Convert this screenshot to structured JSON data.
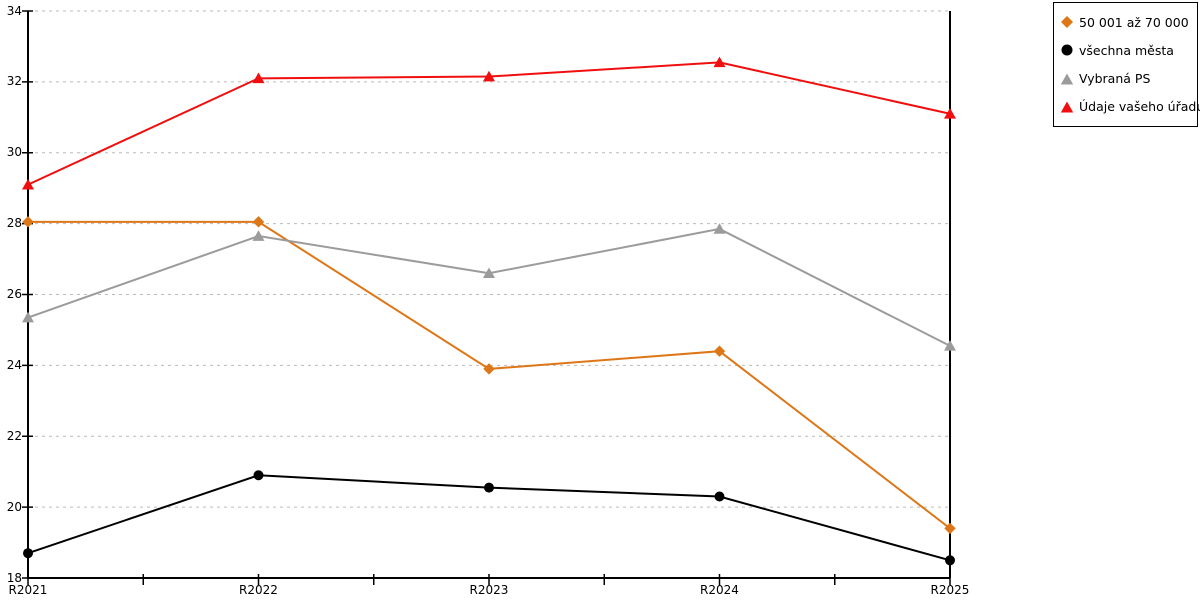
{
  "chart_data": {
    "type": "line",
    "title": "",
    "xlabel": "",
    "ylabel": "",
    "x_labels": [
      "R2021",
      "R2022",
      "R2023",
      "R2024",
      "R2025"
    ],
    "y_ticks": [
      "34",
      "32",
      "30",
      "28",
      "26",
      "24",
      "22",
      "20",
      "18"
    ],
    "ylim": [
      18,
      34
    ],
    "ytick_step": 2,
    "grid": "horizontal-dashed",
    "legend_position": "top-right-outside",
    "series": [
      {
        "name": "50 001 až 70 000",
        "marker": "diamond",
        "color": "#DD7616",
        "values": [
          28.05,
          28.05,
          23.9,
          24.4,
          19.4
        ]
      },
      {
        "name": "všechna města",
        "marker": "circle",
        "color": "#000000",
        "values": [
          18.7,
          20.9,
          20.55,
          20.3,
          18.5
        ]
      },
      {
        "name": "Vybraná PS",
        "marker": "triangle",
        "color": "#9B9B9B",
        "values": [
          25.35,
          27.65,
          26.6,
          27.85,
          24.55
        ]
      },
      {
        "name": "Údaje vašeho úřadu",
        "marker": "triangle",
        "color": "#F00E0E",
        "values": [
          29.1,
          32.1,
          32.15,
          32.55,
          31.1
        ]
      }
    ],
    "colors": {
      "grid": "#BBBBBB",
      "axis": "#000000",
      "background": "#FFFFFF"
    }
  }
}
